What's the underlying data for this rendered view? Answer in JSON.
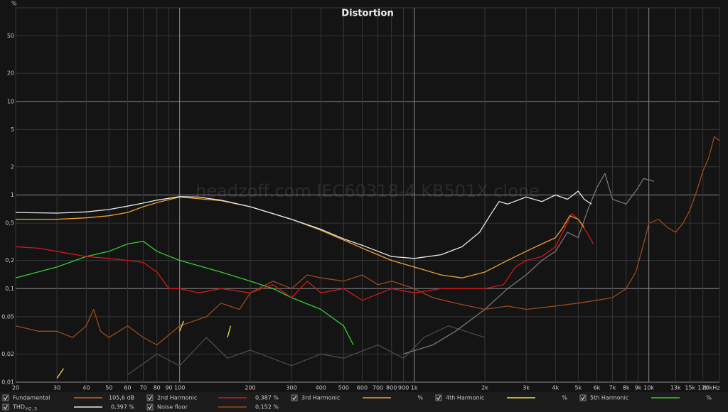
{
  "chart_data": {
    "type": "line",
    "title": "Distortion",
    "y_unit": "%",
    "watermark": "headzoff.com IEC60318-4 KB501X clone",
    "log_x": true,
    "log_y": true,
    "grid": true,
    "xlim": [
      20,
      20000
    ],
    "ylim": [
      0.01,
      100
    ],
    "xticks": [
      20,
      30,
      40,
      50,
      60,
      70,
      80,
      90,
      100,
      200,
      300,
      400,
      500,
      600,
      700,
      800,
      900,
      {
        "value": 1000,
        "label": "1k"
      },
      {
        "value": 2000,
        "label": "2k"
      },
      {
        "value": 3000,
        "label": "3k"
      },
      {
        "value": 4000,
        "label": "4k"
      },
      {
        "value": 5000,
        "label": "5k"
      },
      {
        "value": 6000,
        "label": "6k"
      },
      {
        "value": 7000,
        "label": "7k"
      },
      {
        "value": 8000,
        "label": "8k"
      },
      {
        "value": 9000,
        "label": "9k"
      },
      {
        "value": 10000,
        "label": "10k"
      },
      {
        "value": 13000,
        "label": "13k"
      },
      {
        "value": 15000,
        "label": "15k"
      },
      {
        "value": 17000,
        "label": "17k"
      },
      {
        "value": 20000,
        "label": "20kHz"
      }
    ],
    "yticks": [
      50,
      20,
      10,
      5,
      2,
      1,
      {
        "value": 0.5,
        "label": "0,5"
      },
      {
        "value": 0.2,
        "label": "0,2"
      },
      {
        "value": 0.1,
        "label": "0,1"
      },
      {
        "value": 0.05,
        "label": "0,05"
      },
      {
        "value": 0.02,
        "label": "0,02"
      },
      {
        "value": 0.01,
        "label": "0,01"
      }
    ],
    "series": [
      {
        "name": "Fundamental",
        "color": "#c8642a",
        "reading": "105,6 dB",
        "x": [],
        "values": []
      },
      {
        "name": "2nd Harmonic",
        "color": "#d01818",
        "reading": "0,387 %",
        "x": [
          20,
          25,
          30,
          40,
          50,
          60,
          70,
          80,
          90,
          100,
          120,
          150,
          200,
          250,
          300,
          350,
          400,
          500,
          600,
          800,
          1000,
          1300,
          1600,
          2000,
          2400,
          2700,
          3000,
          3500,
          4000,
          4400,
          4700,
          5000,
          5500,
          5800
        ],
        "values": [
          0.28,
          0.27,
          0.25,
          0.22,
          0.21,
          0.2,
          0.19,
          0.15,
          0.1,
          0.1,
          0.09,
          0.1,
          0.09,
          0.11,
          0.08,
          0.12,
          0.09,
          0.1,
          0.075,
          0.1,
          0.09,
          0.1,
          0.1,
          0.1,
          0.11,
          0.17,
          0.2,
          0.22,
          0.28,
          0.45,
          0.63,
          0.55,
          0.38,
          0.3
        ]
      },
      {
        "name": "3rd Harmonic",
        "color": "#f0a030",
        "reading": "%",
        "x": [
          20,
          30,
          40,
          50,
          60,
          70,
          80,
          100,
          150,
          200,
          300,
          400,
          500,
          600,
          800,
          1000,
          1300,
          1600,
          2000,
          2500,
          3000,
          3500,
          4000,
          4300,
          4600,
          5000,
          5300
        ],
        "values": [
          0.55,
          0.55,
          0.57,
          0.6,
          0.65,
          0.75,
          0.83,
          0.95,
          0.87,
          0.75,
          0.55,
          0.42,
          0.33,
          0.27,
          0.2,
          0.17,
          0.14,
          0.13,
          0.15,
          0.2,
          0.25,
          0.3,
          0.35,
          0.45,
          0.6,
          0.55,
          0.45
        ]
      },
      {
        "name": "4th Harmonic",
        "color": "#f0e040",
        "reading": "%",
        "x": [
          30,
          32,
          50,
          100,
          104,
          130,
          160,
          165
        ],
        "values": [
          0.011,
          0.014,
          null,
          0.035,
          0.045,
          null,
          0.03,
          0.04
        ]
      },
      {
        "name": "5th Harmonic",
        "color": "#33cc33",
        "reading": "%",
        "x": [
          20,
          30,
          40,
          50,
          60,
          70,
          80,
          100,
          150,
          200,
          250,
          300,
          400,
          500,
          550
        ],
        "values": [
          0.13,
          0.17,
          0.22,
          0.25,
          0.3,
          0.32,
          0.25,
          0.2,
          0.15,
          0.12,
          0.1,
          0.08,
          0.06,
          0.04,
          0.025
        ]
      },
      {
        "name": "THD",
        "subscript": "H2..5",
        "color": "#e8e8e8",
        "reading": "0,397 %",
        "x": [
          20,
          30,
          40,
          50,
          60,
          70,
          80,
          100,
          120,
          150,
          200,
          300,
          400,
          500,
          600,
          700,
          800,
          1000,
          1300,
          1600,
          1900,
          2100,
          2300,
          2500,
          3000,
          3500,
          4000,
          4500,
          5000,
          5300,
          5700
        ],
        "values": [
          0.65,
          0.64,
          0.66,
          0.7,
          0.76,
          0.82,
          0.88,
          0.96,
          0.95,
          0.88,
          0.75,
          0.55,
          0.43,
          0.34,
          0.29,
          0.25,
          0.22,
          0.21,
          0.23,
          0.28,
          0.4,
          0.6,
          0.85,
          0.8,
          0.95,
          0.85,
          1.0,
          0.9,
          1.1,
          0.9,
          0.8
        ]
      },
      {
        "name": "Noise floor",
        "color": "#9a4a1e",
        "reading": "0,152 %",
        "x": [
          20,
          25,
          30,
          35,
          40,
          43,
          46,
          50,
          60,
          70,
          80,
          100,
          130,
          150,
          180,
          200,
          250,
          300,
          350,
          400,
          500,
          600,
          700,
          800,
          1000,
          1200,
          1500,
          2000,
          2500,
          3000,
          4000,
          5000,
          6000,
          7000,
          8000,
          8800,
          9500,
          10000,
          11000,
          12000,
          13000,
          14000,
          15000,
          16000,
          17000,
          18000,
          19000,
          20000
        ],
        "values": [
          0.04,
          0.035,
          0.035,
          0.03,
          0.04,
          0.06,
          0.035,
          0.03,
          0.04,
          0.03,
          0.025,
          0.04,
          0.05,
          0.07,
          0.06,
          0.09,
          0.12,
          0.1,
          0.14,
          0.13,
          0.12,
          0.14,
          0.11,
          0.12,
          0.1,
          0.08,
          0.07,
          0.06,
          0.065,
          0.06,
          0.065,
          0.07,
          0.075,
          0.08,
          0.1,
          0.15,
          0.3,
          0.5,
          0.55,
          0.45,
          0.4,
          0.5,
          0.7,
          1.1,
          1.8,
          2.5,
          4.2,
          3.8
        ]
      },
      {
        "color": "#777777",
        "x": [
          900,
          1200,
          1500,
          2000,
          2500,
          3000,
          3500,
          4000,
          4500,
          5000,
          5500,
          6000,
          6500,
          7000,
          8000,
          9000,
          9500,
          10500
        ],
        "values": [
          0.02,
          0.025,
          0.035,
          0.06,
          0.1,
          0.14,
          0.2,
          0.25,
          0.4,
          0.35,
          0.7,
          1.2,
          1.7,
          0.9,
          0.8,
          1.2,
          1.5,
          1.4
        ]
      },
      {
        "color": "#4a4a4a",
        "x": [
          60,
          80,
          100,
          130,
          160,
          200,
          300,
          400,
          500,
          700,
          900,
          1100,
          1400,
          2000
        ],
        "values": [
          0.012,
          0.02,
          0.015,
          0.03,
          0.018,
          0.022,
          0.015,
          0.02,
          0.018,
          0.025,
          0.018,
          0.03,
          0.04,
          0.03
        ]
      }
    ]
  }
}
